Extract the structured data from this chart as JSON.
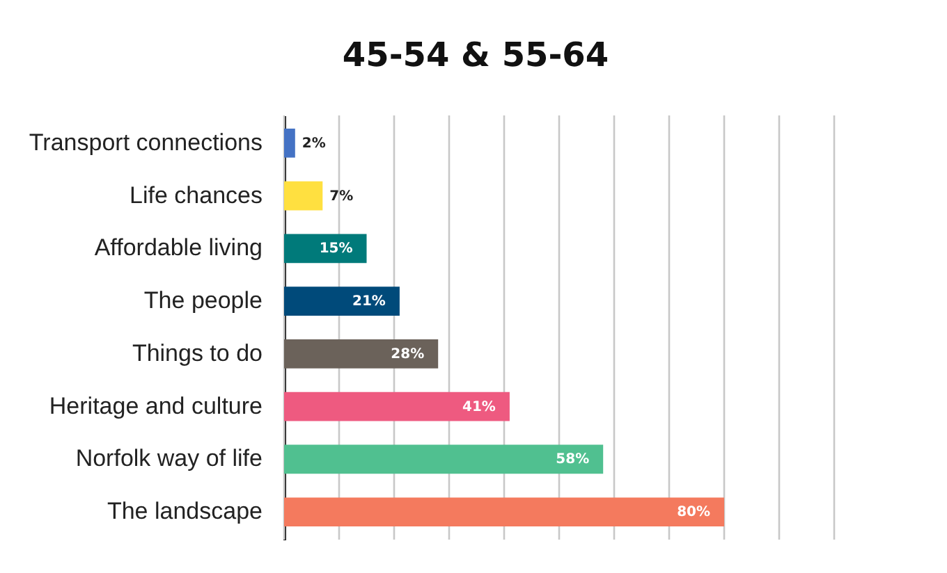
{
  "chart_data": {
    "type": "bar",
    "orientation": "horizontal",
    "title": "45-54 & 55-64",
    "categories": [
      "Transport connections",
      "Life chances",
      "Affordable living",
      "The people",
      "Things to do",
      "Heritage and culture",
      "Norfolk way of life",
      "The landscape"
    ],
    "values": [
      2,
      7,
      15,
      21,
      28,
      41,
      58,
      80
    ],
    "colors": [
      "#4472c4",
      "#ffe040",
      "#007a7a",
      "#004a7a",
      "#6b625a",
      "#ee5a80",
      "#50c090",
      "#f47a5e"
    ],
    "value_labels": [
      "2%",
      "7%",
      "15%",
      "21%",
      "28%",
      "41%",
      "58%",
      "80%"
    ],
    "xlim": [
      0,
      100
    ],
    "xticks": [
      {
        "value": 0,
        "label": null
      },
      {
        "value": 10,
        "label": null
      },
      {
        "value": 20,
        "label": null
      },
      {
        "value": 30,
        "label": null
      },
      {
        "value": 40,
        "label": null
      },
      {
        "value": 50,
        "label": null
      },
      {
        "value": 60,
        "label": null
      },
      {
        "value": 70,
        "label": null
      },
      {
        "value": 80,
        "label": null
      },
      {
        "value": 90,
        "label": null
      },
      {
        "value": 100,
        "label": null
      }
    ],
    "grid": "x",
    "tick_labels": "y"
  }
}
